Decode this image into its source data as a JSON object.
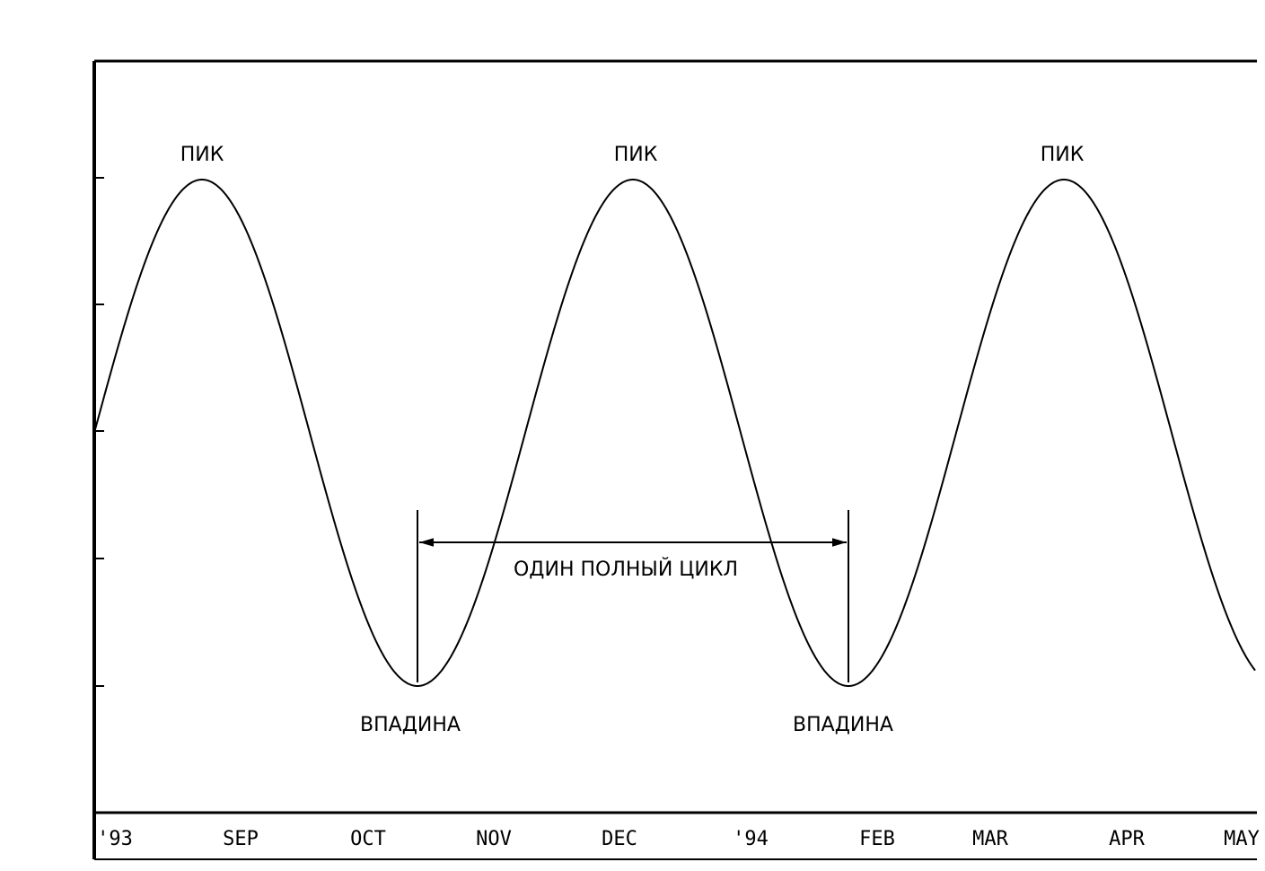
{
  "peak_labels": [
    "ПИК",
    "ПИК",
    "ПИК"
  ],
  "trough_labels": [
    "ВПАДИНА",
    "ВПАДИНА"
  ],
  "cycle_label": "ОДИН ПОЛНЫЙ ЦИКЛ",
  "x_axis_labels": [
    "'93",
    "SEP",
    "OCT",
    "NOV",
    "DEC",
    "'94",
    "FEB",
    "MAR",
    "APR",
    "MAY"
  ]
}
